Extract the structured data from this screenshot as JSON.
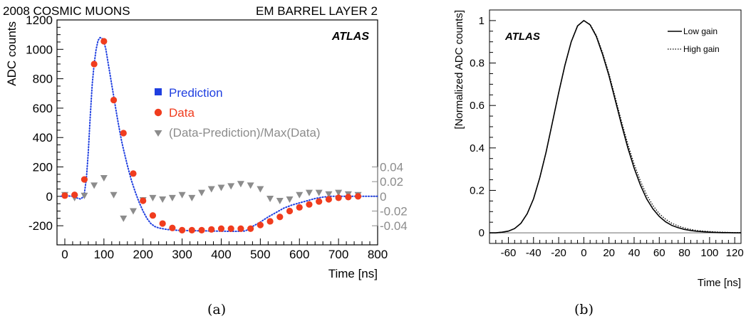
{
  "chart_data": [
    {
      "panel": "(a)",
      "type": "scatter",
      "title_left": "2008 COSMIC MUONS",
      "title_right": "EM BARREL LAYER 2",
      "watermark": "ATLAS",
      "xlabel": "Time [ns]",
      "ylabel": "ADC counts",
      "xlim": [
        -20,
        800
      ],
      "ylim": [
        -330,
        1200
      ],
      "x_ticks": [
        0,
        100,
        200,
        300,
        400,
        500,
        600,
        700,
        800
      ],
      "y_ticks": [
        -200,
        0,
        200,
        400,
        600,
        800,
        1000,
        1200
      ],
      "secondary_axis": {
        "side": "right",
        "ticks": [
          {
            "label": "0.04",
            "y": 0.04
          },
          {
            "label": "0.02",
            "y": 0.02
          },
          {
            "label": "0",
            "y": 0
          },
          {
            "label": "-0.02",
            "y": -0.02
          },
          {
            "label": "-0.04",
            "y": -0.04
          }
        ],
        "scale_adc_per_unit": 5000,
        "color": "#8c8c8c"
      },
      "legend": {
        "position": "center-right",
        "entries": [
          {
            "label": "Prediction",
            "marker": "square",
            "color": "#1f3fe0"
          },
          {
            "label": "Data",
            "marker": "circle",
            "color": "#f03c1e"
          },
          {
            "label": "(Data-Prediction)/Max(Data)",
            "marker": "triangle-down",
            "color": "#8c8c8c"
          }
        ]
      },
      "series": [
        {
          "name": "Prediction",
          "style": "dotted-line",
          "color": "#1f3fe0",
          "x": [
            -10,
            0,
            10,
            20,
            30,
            40,
            45,
            50,
            55,
            60,
            65,
            70,
            75,
            80,
            85,
            90,
            95,
            100,
            105,
            110,
            115,
            120,
            125,
            130,
            135,
            140,
            145,
            150,
            160,
            170,
            180,
            190,
            200,
            210,
            220,
            230,
            240,
            250,
            260,
            270,
            280,
            300,
            320,
            340,
            360,
            380,
            400,
            420,
            440,
            460,
            470,
            480,
            500,
            520,
            540,
            560,
            580,
            600,
            620,
            640,
            660,
            680,
            700,
            720,
            740,
            760,
            780,
            800
          ],
          "y": [
            0,
            0,
            2,
            0,
            -10,
            -18,
            -8,
            20,
            120,
            300,
            540,
            760,
            900,
            1000,
            1060,
            1080,
            1075,
            1050,
            1000,
            920,
            840,
            760,
            680,
            600,
            520,
            450,
            380,
            320,
            210,
            110,
            30,
            -40,
            -100,
            -150,
            -185,
            -205,
            -215,
            -220,
            -225,
            -228,
            -230,
            -232,
            -233,
            -234,
            -235,
            -236,
            -237,
            -238,
            -238,
            -236,
            -225,
            -205,
            -175,
            -140,
            -110,
            -80,
            -60,
            -45,
            -30,
            -15,
            -5,
            0,
            0,
            0,
            0,
            0,
            0,
            0
          ]
        },
        {
          "name": "Data",
          "marker": "circle",
          "color": "#f03c1e",
          "x": [
            0,
            25,
            50,
            75,
            100,
            125,
            150,
            175,
            200,
            225,
            250,
            275,
            300,
            325,
            350,
            375,
            400,
            425,
            450,
            475,
            500,
            525,
            550,
            575,
            600,
            625,
            650,
            675,
            700,
            725,
            750
          ],
          "y": [
            5,
            10,
            115,
            900,
            1055,
            655,
            430,
            155,
            -30,
            -130,
            -185,
            -215,
            -230,
            -230,
            -230,
            -225,
            -220,
            -220,
            -220,
            -220,
            -195,
            -170,
            -140,
            -100,
            -75,
            -55,
            -35,
            -20,
            -10,
            -5,
            0
          ]
        },
        {
          "name": "(Data-Prediction)/Max(Data)",
          "marker": "triangle-down",
          "color": "#8c8c8c",
          "x": [
            0,
            25,
            50,
            75,
            100,
            125,
            150,
            175,
            200,
            225,
            250,
            275,
            300,
            325,
            350,
            375,
            400,
            425,
            450,
            475,
            500,
            525,
            550,
            575,
            600,
            625,
            650,
            675,
            700,
            725,
            750
          ],
          "y": [
            0.002,
            -0.002,
            0.001,
            0.015,
            0.025,
            0.002,
            -0.03,
            -0.02,
            -0.005,
            -0.002,
            -0.004,
            -0.002,
            0.002,
            -0.002,
            0.005,
            0.01,
            0.012,
            0.014,
            0.017,
            0.015,
            0.01,
            -0.003,
            -0.006,
            -0.004,
            0.002,
            0.005,
            0.005,
            0.003,
            0.005,
            0.003,
            0.002
          ]
        }
      ],
      "caption": "(a)"
    },
    {
      "panel": "(b)",
      "type": "line",
      "watermark": "ATLAS",
      "xlabel": "Time [ns]",
      "ylabel": "[Normalized ADC counts]",
      "xlim": [
        -75,
        125
      ],
      "ylim": [
        -0.05,
        1.05
      ],
      "x_ticks": [
        -60,
        -40,
        -20,
        0,
        20,
        40,
        60,
        80,
        100,
        120
      ],
      "y_ticks": [
        0,
        0.2,
        0.4,
        0.6,
        0.8,
        1
      ],
      "y_tick_labels": [
        "0",
        "0.2",
        "0.4",
        "0.6",
        "0.8",
        "1"
      ],
      "legend": {
        "position": "top-right",
        "entries": [
          {
            "label": "Low gain",
            "style": "solid"
          },
          {
            "label": "High gain",
            "style": "dotted"
          }
        ]
      },
      "series": [
        {
          "name": "Low gain",
          "style": "solid",
          "color": "#000000",
          "x": [
            -75,
            -70,
            -65,
            -60,
            -55,
            -50,
            -45,
            -40,
            -35,
            -30,
            -25,
            -20,
            -15,
            -10,
            -5,
            0,
            5,
            10,
            15,
            20,
            25,
            30,
            35,
            40,
            45,
            50,
            55,
            60,
            65,
            70,
            75,
            80,
            85,
            90,
            95,
            100,
            105,
            110,
            115,
            120,
            125
          ],
          "y": [
            0.0,
            0.0,
            0.003,
            0.008,
            0.02,
            0.045,
            0.09,
            0.16,
            0.26,
            0.38,
            0.52,
            0.66,
            0.79,
            0.9,
            0.975,
            1.0,
            0.98,
            0.925,
            0.84,
            0.74,
            0.625,
            0.51,
            0.4,
            0.305,
            0.225,
            0.16,
            0.112,
            0.077,
            0.052,
            0.035,
            0.024,
            0.016,
            0.011,
            0.007,
            0.005,
            0.003,
            0.002,
            0.001,
            0.001,
            0.0,
            0.0
          ]
        },
        {
          "name": "High gain",
          "style": "dotted",
          "color": "#000000",
          "x": [
            -75,
            -70,
            -65,
            -60,
            -55,
            -50,
            -45,
            -40,
            -35,
            -30,
            -25,
            -20,
            -15,
            -10,
            -5,
            0,
            5,
            10,
            15,
            20,
            25,
            30,
            35,
            40,
            45,
            50,
            55,
            60,
            65,
            70,
            75,
            80,
            85,
            90,
            95,
            100,
            105,
            110,
            115,
            120,
            125
          ],
          "y": [
            0.0,
            0.0,
            0.003,
            0.008,
            0.02,
            0.045,
            0.09,
            0.16,
            0.26,
            0.38,
            0.52,
            0.66,
            0.79,
            0.9,
            0.975,
            1.0,
            0.982,
            0.93,
            0.848,
            0.75,
            0.638,
            0.525,
            0.418,
            0.324,
            0.244,
            0.178,
            0.128,
            0.09,
            0.064,
            0.045,
            0.032,
            0.023,
            0.016,
            0.011,
            0.008,
            0.006,
            0.004,
            0.003,
            0.002,
            0.001,
            0.001
          ]
        }
      ],
      "caption": "(b)"
    }
  ]
}
